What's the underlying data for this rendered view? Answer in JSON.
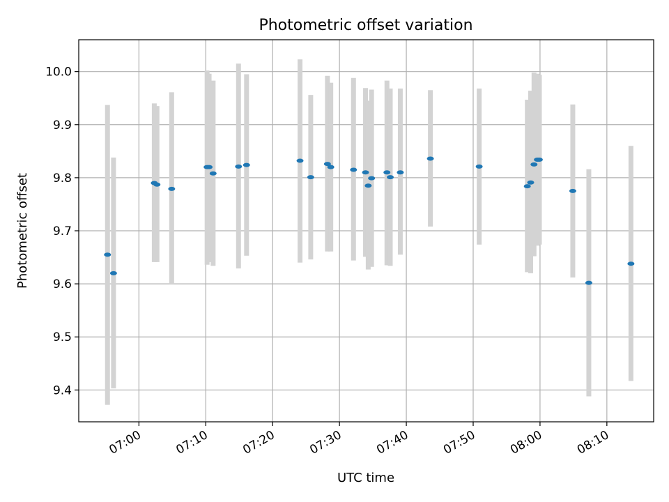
{
  "chart_data": {
    "type": "scatter",
    "title": "Photometric offset variation",
    "xlabel": "UTC time",
    "ylabel": "Photometric offset",
    "x_axis_type": "time",
    "xlim": [
      "06:51",
      "08:17"
    ],
    "ylim": [
      9.34,
      10.06
    ],
    "x_ticks": [
      "07:00",
      "07:10",
      "07:20",
      "07:30",
      "07:40",
      "07:50",
      "08:00",
      "08:10"
    ],
    "y_ticks": [
      "9.4",
      "9.5",
      "9.6",
      "9.7",
      "9.8",
      "9.9",
      "10.0"
    ],
    "grid": true,
    "marker_color": "#1f77b4",
    "errorbar_color": "#d3d3d3",
    "points": [
      {
        "time": "06:55:18",
        "value": 9.655,
        "low": 9.372,
        "high": 9.937
      },
      {
        "time": "06:56:12",
        "value": 9.62,
        "low": 9.403,
        "high": 9.838
      },
      {
        "time": "07:02:18",
        "value": 9.79,
        "low": 9.641,
        "high": 9.94
      },
      {
        "time": "07:02:42",
        "value": 9.787,
        "low": 9.641,
        "high": 9.935
      },
      {
        "time": "07:04:54",
        "value": 9.779,
        "low": 9.6,
        "high": 9.961
      },
      {
        "time": "07:10:12",
        "value": 9.82,
        "low": 9.636,
        "high": 10.002
      },
      {
        "time": "07:10:30",
        "value": 9.82,
        "low": 9.641,
        "high": 9.996
      },
      {
        "time": "07:11:06",
        "value": 9.808,
        "low": 9.634,
        "high": 9.983
      },
      {
        "time": "07:14:54",
        "value": 9.821,
        "low": 9.629,
        "high": 10.015
      },
      {
        "time": "07:16:06",
        "value": 9.824,
        "low": 9.653,
        "high": 9.995
      },
      {
        "time": "07:24:06",
        "value": 9.832,
        "low": 9.64,
        "high": 10.023
      },
      {
        "time": "07:25:42",
        "value": 9.801,
        "low": 9.646,
        "high": 9.956
      },
      {
        "time": "07:28:12",
        "value": 9.826,
        "low": 9.661,
        "high": 9.992
      },
      {
        "time": "07:28:42",
        "value": 9.82,
        "low": 9.661,
        "high": 9.979
      },
      {
        "time": "07:32:06",
        "value": 9.815,
        "low": 9.644,
        "high": 9.988
      },
      {
        "time": "07:33:54",
        "value": 9.81,
        "low": 9.651,
        "high": 9.969
      },
      {
        "time": "07:34:18",
        "value": 9.785,
        "low": 9.627,
        "high": 9.945
      },
      {
        "time": "07:34:48",
        "value": 9.799,
        "low": 9.632,
        "high": 9.966
      },
      {
        "time": "07:37:06",
        "value": 9.81,
        "low": 9.635,
        "high": 9.983
      },
      {
        "time": "07:37:36",
        "value": 9.801,
        "low": 9.634,
        "high": 9.968
      },
      {
        "time": "07:39:06",
        "value": 9.81,
        "low": 9.655,
        "high": 9.968
      },
      {
        "time": "07:43:36",
        "value": 9.836,
        "low": 9.708,
        "high": 9.965
      },
      {
        "time": "07:50:54",
        "value": 9.821,
        "low": 9.674,
        "high": 9.968
      },
      {
        "time": "07:58:06",
        "value": 9.784,
        "low": 9.622,
        "high": 9.947
      },
      {
        "time": "07:58:36",
        "value": 9.791,
        "low": 9.62,
        "high": 9.964
      },
      {
        "time": "07:59:06",
        "value": 9.825,
        "low": 9.652,
        "high": 9.998
      },
      {
        "time": "07:59:36",
        "value": 9.834,
        "low": 9.672,
        "high": 9.996
      },
      {
        "time": "07:59:54",
        "value": 9.834,
        "low": 9.674,
        "high": 9.994
      },
      {
        "time": "08:04:54",
        "value": 9.775,
        "low": 9.612,
        "high": 9.938
      },
      {
        "time": "08:07:18",
        "value": 9.602,
        "low": 9.388,
        "high": 9.816
      },
      {
        "time": "08:13:36",
        "value": 9.638,
        "low": 9.417,
        "high": 9.86
      }
    ]
  }
}
